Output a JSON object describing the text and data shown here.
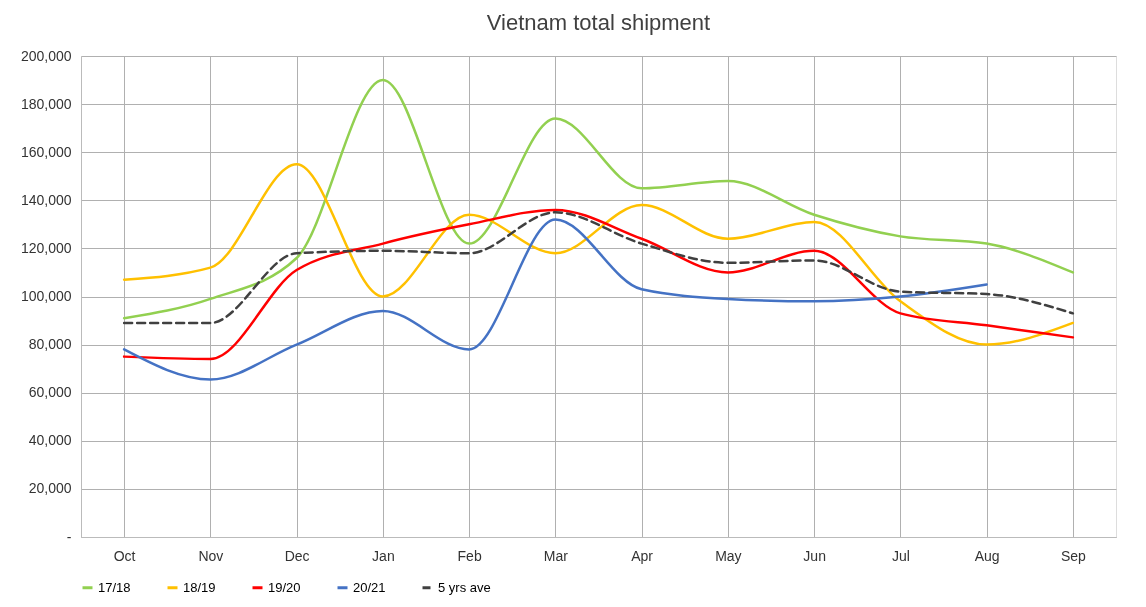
{
  "chart_data": {
    "type": "line",
    "title": "Vietnam total shipment",
    "categories": [
      "Oct",
      "Nov",
      "Dec",
      "Jan",
      "Feb",
      "Mar",
      "Apr",
      "May",
      "Jun",
      "Jul",
      "Aug",
      "Sep"
    ],
    "series": [
      {
        "name": "17/18",
        "color": "#92d050",
        "values": [
          91000,
          99000,
          116000,
          190000,
          122000,
          174000,
          145000,
          148000,
          134000,
          125000,
          122000,
          110000
        ]
      },
      {
        "name": "18/19",
        "color": "#ffc000",
        "values": [
          107000,
          112000,
          155000,
          100000,
          134000,
          118000,
          138000,
          124000,
          131000,
          98000,
          80000,
          89000
        ]
      },
      {
        "name": "19/20",
        "color": "#ff0000",
        "values": [
          75000,
          74000,
          111000,
          122000,
          130000,
          136000,
          124000,
          110000,
          119000,
          93000,
          88000,
          83000
        ]
      },
      {
        "name": "20/21",
        "color": "#4472c4",
        "values": [
          78000,
          65500,
          80000,
          94000,
          78000,
          132000,
          103000,
          99000,
          98000,
          100000,
          105000,
          null
        ]
      },
      {
        "name": "5 yrs ave",
        "color": "#404040",
        "line_style": "dashed",
        "values": [
          89000,
          89000,
          118000,
          119000,
          118000,
          135000,
          122000,
          114000,
          115000,
          102000,
          101000,
          93000
        ]
      }
    ],
    "ylim": [
      0,
      200000
    ],
    "yticks": [
      {
        "value": 0,
        "label": "-"
      },
      {
        "value": 20000,
        "label": "20,000"
      },
      {
        "value": 40000,
        "label": "40,000"
      },
      {
        "value": 60000,
        "label": "60,000"
      },
      {
        "value": 80000,
        "label": "80,000"
      },
      {
        "value": 100000,
        "label": "100,000"
      },
      {
        "value": 120000,
        "label": "120,000"
      },
      {
        "value": 140000,
        "label": "140,000"
      },
      {
        "value": 160000,
        "label": "160,000"
      },
      {
        "value": 180000,
        "label": "180,000"
      },
      {
        "value": 200000,
        "label": "200,000"
      }
    ],
    "grid": true,
    "legend": "bottom",
    "line_style": "solid",
    "marker": "none"
  }
}
